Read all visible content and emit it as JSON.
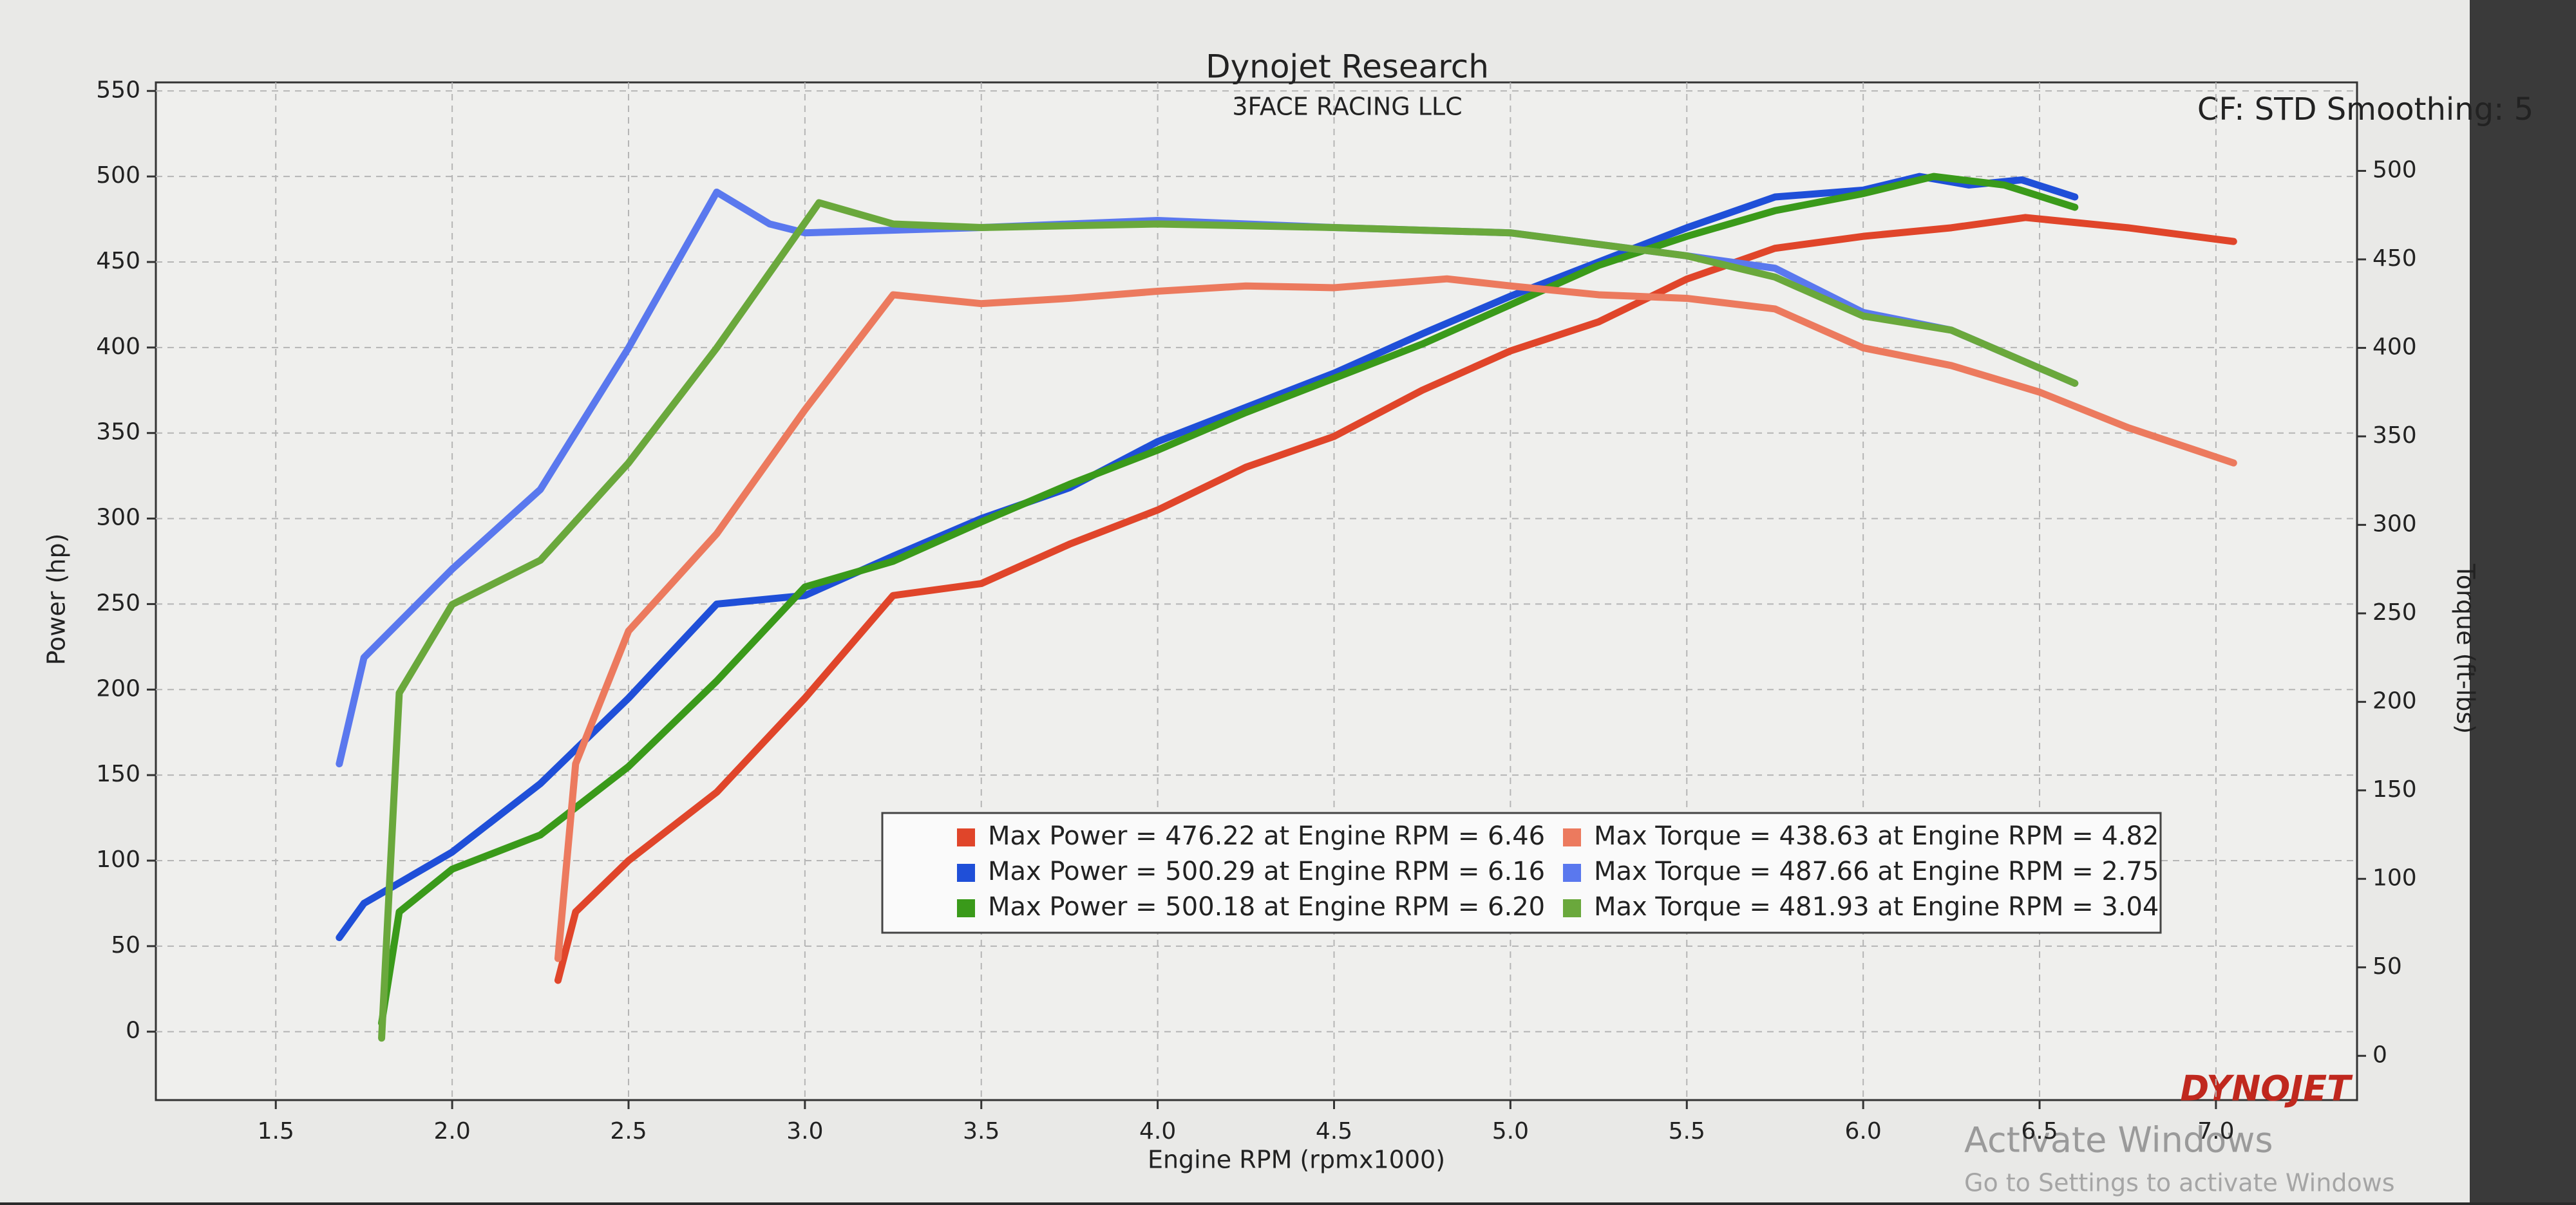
{
  "chart_data": {
    "type": "line",
    "title": "Dynojet Research",
    "subtitle": "3FACE RACING LLC",
    "annotation": "CF: STD Smoothing: 5",
    "x_label": "Engine RPM (rpmx1000)",
    "y_label": "Power (hp)",
    "y2_label": "Torque (ft-lbs)",
    "xlim": [
      1.16,
      7.4
    ],
    "ylim": [
      -40,
      555
    ],
    "y2lim": [
      -25,
      550
    ],
    "xticks": [
      1.5,
      {
        "value": 2,
        "label": "2.0"
      },
      2.5,
      {
        "value": 3,
        "label": "3.0"
      },
      3.5,
      {
        "value": 4,
        "label": "4.0"
      },
      4.5,
      {
        "value": 5,
        "label": "5.0"
      },
      5.5,
      {
        "value": 6,
        "label": "6.0"
      },
      6.5,
      {
        "value": 7,
        "label": "7.0"
      }
    ],
    "yticks": [
      0,
      50,
      100,
      150,
      200,
      250,
      300,
      350,
      400,
      450,
      500,
      550
    ],
    "y2ticks": [
      0,
      50,
      100,
      150,
      200,
      250,
      300,
      350,
      400,
      450,
      500
    ],
    "grid": true,
    "legend": "lower-center",
    "series": [
      {
        "name": "Max Power = 476.22 at Engine RPM = 6.46",
        "color": "#e0452a",
        "x": [
          2.3,
          2.35,
          2.5,
          2.75,
          3.0,
          3.25,
          3.5,
          3.75,
          4.0,
          4.25,
          4.5,
          4.75,
          5.0,
          5.25,
          5.5,
          5.75,
          6.0,
          6.25,
          6.46,
          6.75,
          7.05
        ],
        "values": [
          30,
          70,
          100,
          140,
          195,
          255,
          262,
          285,
          305,
          330,
          348,
          375,
          398,
          415,
          440,
          458,
          465,
          470,
          476,
          470,
          462
        ]
      },
      {
        "name": "Max Power = 500.29 at Engine RPM = 6.16",
        "color": "#1f4fd8",
        "x": [
          1.68,
          1.75,
          2.0,
          2.25,
          2.5,
          2.75,
          3.0,
          3.25,
          3.5,
          3.75,
          4.0,
          4.25,
          4.5,
          4.75,
          5.0,
          5.25,
          5.5,
          5.75,
          6.0,
          6.16,
          6.3,
          6.45,
          6.6
        ],
        "values": [
          55,
          75,
          105,
          145,
          195,
          250,
          255,
          278,
          300,
          318,
          345,
          365,
          385,
          408,
          430,
          450,
          470,
          488,
          492,
          500,
          495,
          498,
          488
        ]
      },
      {
        "name": "Max Power = 500.18 at Engine RPM = 6.20",
        "color": "#3a9a1a",
        "x": [
          1.8,
          1.85,
          2.0,
          2.25,
          2.5,
          2.75,
          3.0,
          3.25,
          3.5,
          3.75,
          4.0,
          4.25,
          4.5,
          4.75,
          5.0,
          5.25,
          5.5,
          5.75,
          6.0,
          6.2,
          6.4,
          6.6
        ],
        "values": [
          5,
          70,
          95,
          115,
          155,
          205,
          260,
          275,
          298,
          320,
          340,
          362,
          382,
          402,
          425,
          448,
          465,
          480,
          490,
          500,
          495,
          482
        ]
      },
      {
        "name": "Max Torque = 438.63 at Engine RPM = 4.82",
        "color": "#ec7a5e",
        "axis": "y2",
        "x": [
          2.3,
          2.35,
          2.5,
          2.75,
          3.0,
          3.25,
          3.5,
          3.75,
          4.0,
          4.25,
          4.5,
          4.82,
          5.0,
          5.25,
          5.5,
          5.75,
          6.0,
          6.25,
          6.5,
          6.75,
          7.05
        ],
        "values": [
          55,
          165,
          240,
          295,
          365,
          430,
          425,
          428,
          432,
          435,
          434,
          439,
          435,
          430,
          428,
          422,
          400,
          390,
          375,
          355,
          335
        ]
      },
      {
        "name": "Max Torque = 487.66 at Engine RPM = 2.75",
        "color": "#5a78ee",
        "axis": "y2",
        "x": [
          1.68,
          1.75,
          2.0,
          2.25,
          2.5,
          2.75,
          2.9,
          3.0,
          3.5,
          4.0,
          4.5,
          5.0,
          5.5,
          5.75,
          6.0,
          6.25,
          6.6
        ],
        "values": [
          165,
          225,
          275,
          320,
          400,
          488,
          470,
          465,
          468,
          472,
          468,
          465,
          452,
          445,
          420,
          410,
          380
        ]
      },
      {
        "name": "Max Torque = 481.93 at Engine RPM = 3.04",
        "color": "#6aa83c",
        "axis": "y2",
        "x": [
          1.8,
          1.85,
          2.0,
          2.25,
          2.5,
          2.75,
          3.04,
          3.25,
          3.5,
          4.0,
          4.5,
          5.0,
          5.5,
          5.75,
          6.0,
          6.25,
          6.6
        ],
        "values": [
          10,
          205,
          255,
          280,
          335,
          400,
          482,
          470,
          468,
          470,
          468,
          465,
          452,
          440,
          418,
          410,
          380
        ]
      }
    ]
  },
  "logo": "DYNOJET",
  "watermark": {
    "title": "Activate Windows",
    "text": "Go to Settings to activate Windows"
  }
}
